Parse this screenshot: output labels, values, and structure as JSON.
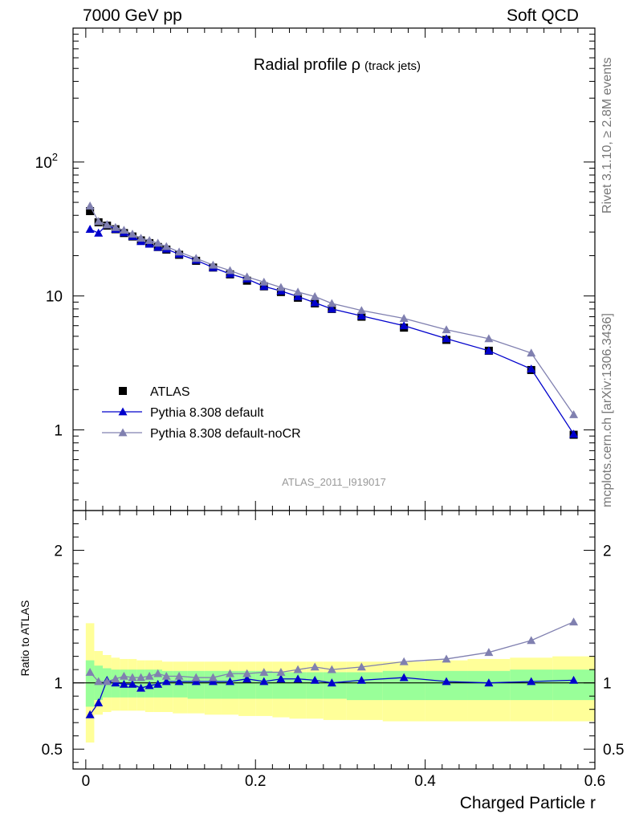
{
  "header": {
    "left": "7000 GeV pp",
    "right": "Soft QCD"
  },
  "side_labels": {
    "rivet": "Rivet 3.1.10, ≥ 2.8M events",
    "mcplots": "mcplots.cern.ch [arXiv:1306.3436]"
  },
  "chart_data": {
    "type": "line",
    "title": "Radial profile",
    "title_symbol": "ρ",
    "title_suffix": "(track jets)",
    "analysis_tag": "ATLAS_2011_I919017",
    "xlabel": "Charged Particle r",
    "ratio_ylabel": "Ratio to ATLAS",
    "xlim": [
      -0.015,
      0.6
    ],
    "ylim": [
      0.25,
      1000
    ],
    "ratio_ylim": [
      0.35,
      2.3
    ],
    "y_scale": "log",
    "legend_position": "bottom-left",
    "x_ticks": [
      "0",
      "0.2",
      "0.4",
      "0.6"
    ],
    "y_ticks": [
      {
        "v": 1,
        "label": "1"
      },
      {
        "v": 10,
        "label": "10"
      },
      {
        "v": 100,
        "label": "10",
        "sup": "2"
      }
    ],
    "ratio_ticks": [
      {
        "v": 0.5,
        "label": "0.5"
      },
      {
        "v": 1,
        "label": "1"
      },
      {
        "v": 2,
        "label": "2"
      }
    ],
    "x": [
      0.005,
      0.015,
      0.025,
      0.035,
      0.045,
      0.055,
      0.065,
      0.075,
      0.085,
      0.095,
      0.11,
      0.13,
      0.15,
      0.17,
      0.19,
      0.21,
      0.23,
      0.25,
      0.27,
      0.29,
      0.325,
      0.375,
      0.425,
      0.475,
      0.525,
      0.575
    ],
    "band_inner": [
      [
        0.82,
        1.17
      ],
      [
        0.87,
        1.13
      ],
      [
        0.89,
        1.11
      ],
      [
        0.89,
        1.1
      ],
      [
        0.89,
        1.1
      ],
      [
        0.89,
        1.1
      ],
      [
        0.89,
        1.1
      ],
      [
        0.89,
        1.1
      ],
      [
        0.89,
        1.1
      ],
      [
        0.89,
        1.09
      ],
      [
        0.89,
        1.09
      ],
      [
        0.88,
        1.09
      ],
      [
        0.88,
        1.09
      ],
      [
        0.88,
        1.09
      ],
      [
        0.88,
        1.09
      ],
      [
        0.88,
        1.09
      ],
      [
        0.88,
        1.08
      ],
      [
        0.88,
        1.08
      ],
      [
        0.88,
        1.08
      ],
      [
        0.88,
        1.08
      ],
      [
        0.87,
        1.08
      ],
      [
        0.87,
        1.09
      ],
      [
        0.87,
        1.09
      ],
      [
        0.87,
        1.09
      ],
      [
        0.87,
        1.1
      ],
      [
        0.87,
        1.1
      ]
    ],
    "band_outer": [
      [
        0.55,
        1.45
      ],
      [
        0.76,
        1.24
      ],
      [
        0.78,
        1.21
      ],
      [
        0.79,
        1.19
      ],
      [
        0.79,
        1.18
      ],
      [
        0.79,
        1.18
      ],
      [
        0.79,
        1.17
      ],
      [
        0.78,
        1.17
      ],
      [
        0.78,
        1.17
      ],
      [
        0.78,
        1.16
      ],
      [
        0.77,
        1.16
      ],
      [
        0.77,
        1.16
      ],
      [
        0.76,
        1.16
      ],
      [
        0.76,
        1.16
      ],
      [
        0.75,
        1.16
      ],
      [
        0.75,
        1.16
      ],
      [
        0.74,
        1.16
      ],
      [
        0.73,
        1.16
      ],
      [
        0.73,
        1.16
      ],
      [
        0.72,
        1.16
      ],
      [
        0.72,
        1.16
      ],
      [
        0.71,
        1.16
      ],
      [
        0.71,
        1.17
      ],
      [
        0.71,
        1.18
      ],
      [
        0.71,
        1.19
      ],
      [
        0.71,
        1.2
      ]
    ],
    "series": [
      {
        "name": "ATLAS",
        "marker": "square",
        "color": "#000000",
        "values": [
          43.0,
          35.5,
          33.5,
          31.5,
          29.5,
          27.8,
          26.0,
          24.8,
          23.2,
          22.2,
          20.3,
          18.3,
          16.3,
          14.5,
          13.0,
          11.8,
          10.7,
          9.7,
          8.8,
          8.0,
          7.0,
          5.8,
          4.7,
          3.9,
          2.8,
          0.92
        ]
      },
      {
        "name": "Pythia 8.308 default",
        "marker": "triangle",
        "color": "#0000cc",
        "values": [
          31.5,
          29.5,
          34.0,
          31.5,
          29.7,
          27.8,
          25.5,
          24.4,
          23.1,
          22.4,
          20.5,
          18.5,
          16.3,
          14.6,
          13.4,
          11.8,
          10.9,
          9.9,
          8.9,
          8.0,
          7.1,
          6.0,
          4.8,
          3.9,
          2.85,
          0.93
        ],
        "ratio": [
          0.76,
          0.85,
          1.02,
          1.0,
          0.99,
          0.99,
          0.96,
          0.98,
          0.99,
          1.01,
          1.01,
          1.01,
          1.01,
          1.01,
          1.03,
          1.01,
          1.03,
          1.03,
          1.02,
          1.0,
          1.02,
          1.04,
          1.01,
          1.0,
          1.01,
          1.02
        ]
      },
      {
        "name": "Pythia 8.308 default-noCR",
        "marker": "triangle",
        "color": "#8080b0",
        "values": [
          47.0,
          36.0,
          34.0,
          32.5,
          31.0,
          29.0,
          27.0,
          26.0,
          24.8,
          23.4,
          21.3,
          19.1,
          17.0,
          15.5,
          13.9,
          12.7,
          11.6,
          10.7,
          9.9,
          8.8,
          7.8,
          6.8,
          5.6,
          4.8,
          3.75,
          1.3
        ],
        "ratio": [
          1.08,
          1.01,
          1.01,
          1.03,
          1.05,
          1.04,
          1.04,
          1.05,
          1.07,
          1.05,
          1.05,
          1.04,
          1.04,
          1.07,
          1.07,
          1.08,
          1.08,
          1.1,
          1.12,
          1.1,
          1.12,
          1.16,
          1.18,
          1.23,
          1.32,
          1.46
        ]
      }
    ]
  }
}
